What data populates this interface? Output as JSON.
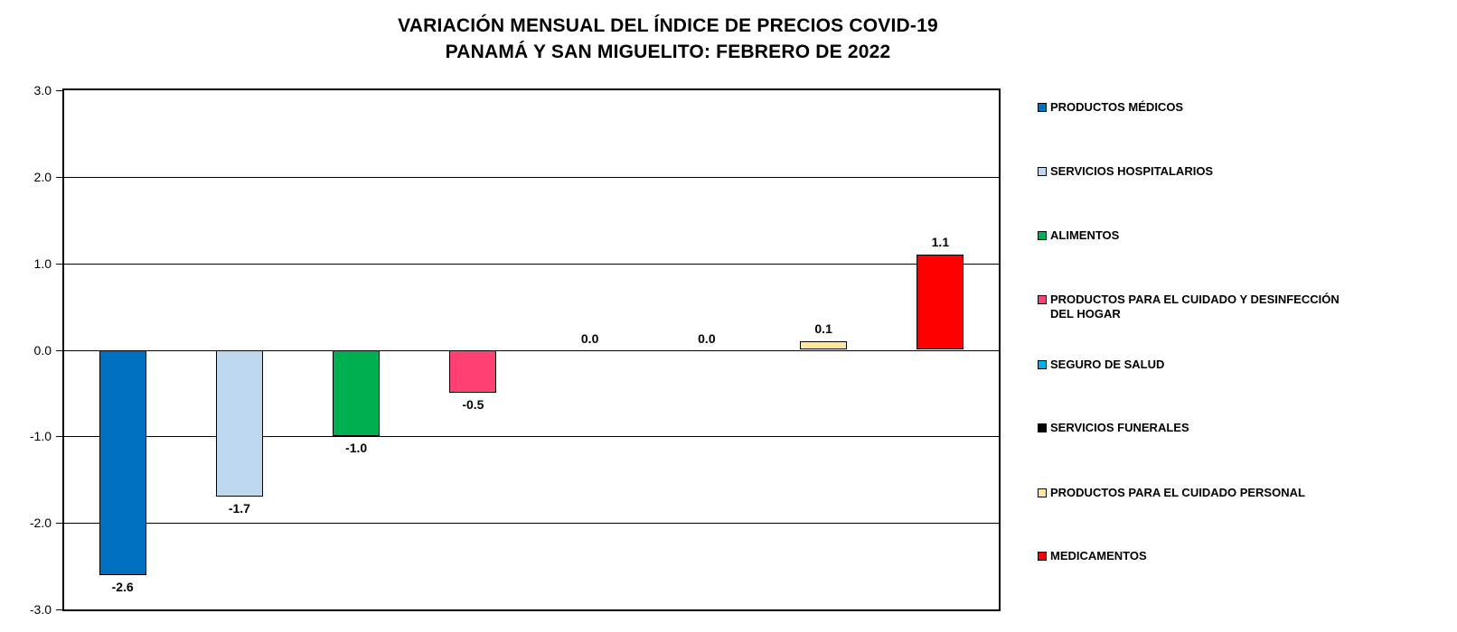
{
  "title": {
    "line1": "VARIACIÓN MENSUAL DEL ÍNDICE DE PRECIOS COVID-19",
    "line2": "PANAMÁ Y SAN MIGUELITO: FEBRERO DE 2022"
  },
  "chart_data": {
    "type": "bar",
    "title": "VARIACIÓN MENSUAL DEL ÍNDICE DE PRECIOS COVID-19 PANAMÁ Y SAN MIGUELITO: FEBRERO DE 2022",
    "categories": [
      "PRODUCTOS MÉDICOS",
      "SERVICIOS HOSPITALARIOS",
      "ALIMENTOS",
      "PRODUCTOS PARA EL CUIDADO Y DESINFECCIÓN DEL HOGAR",
      "SEGURO DE SALUD",
      "SERVICIOS FUNERALES",
      "PRODUCTOS PARA EL CUIDADO PERSONAL",
      "MEDICAMENTOS"
    ],
    "values": [
      -2.6,
      -1.7,
      -1.0,
      -0.5,
      0.0,
      0.0,
      0.1,
      1.1
    ],
    "data_labels": [
      "-2.6",
      "-1.7",
      "-1.0",
      "-0.5",
      "0.0",
      "0.0",
      "0.1",
      "1.1"
    ],
    "bar_colors": [
      "#0070C0",
      "#BDD7EE",
      "#00B050",
      "#FF4073",
      "#00B0F0",
      "#000000",
      "#FFE699",
      "#FF0000"
    ],
    "xlabel": "",
    "ylabel": "",
    "ylim": [
      -3.0,
      3.0
    ],
    "y_tick_labels": [
      "3.0",
      "2.0",
      "1.0",
      "0.0",
      "-1.0",
      "-2.0",
      "-3.0"
    ],
    "y_tick_values": [
      3.0,
      2.0,
      1.0,
      0.0,
      -1.0,
      -2.0,
      -3.0
    ],
    "grid": true,
    "legend_position": "right",
    "legend": [
      {
        "label": "PRODUCTOS MÉDICOS",
        "color": "#0070C0"
      },
      {
        "label": "SERVICIOS HOSPITALARIOS",
        "color": "#BDD7EE"
      },
      {
        "label": "ALIMENTOS",
        "color": "#00B050"
      },
      {
        "label": "PRODUCTOS PARA EL CUIDADO Y DESINFECCIÓN DEL HOGAR",
        "color": "#FF4073"
      },
      {
        "label": "SEGURO DE SALUD",
        "color": "#00B0F0"
      },
      {
        "label": "SERVICIOS FUNERALES",
        "color": "#000000"
      },
      {
        "label": "PRODUCTOS PARA EL CUIDADO PERSONAL",
        "color": "#FFE699"
      },
      {
        "label": "MEDICAMENTOS",
        "color": "#FF0000"
      }
    ]
  }
}
